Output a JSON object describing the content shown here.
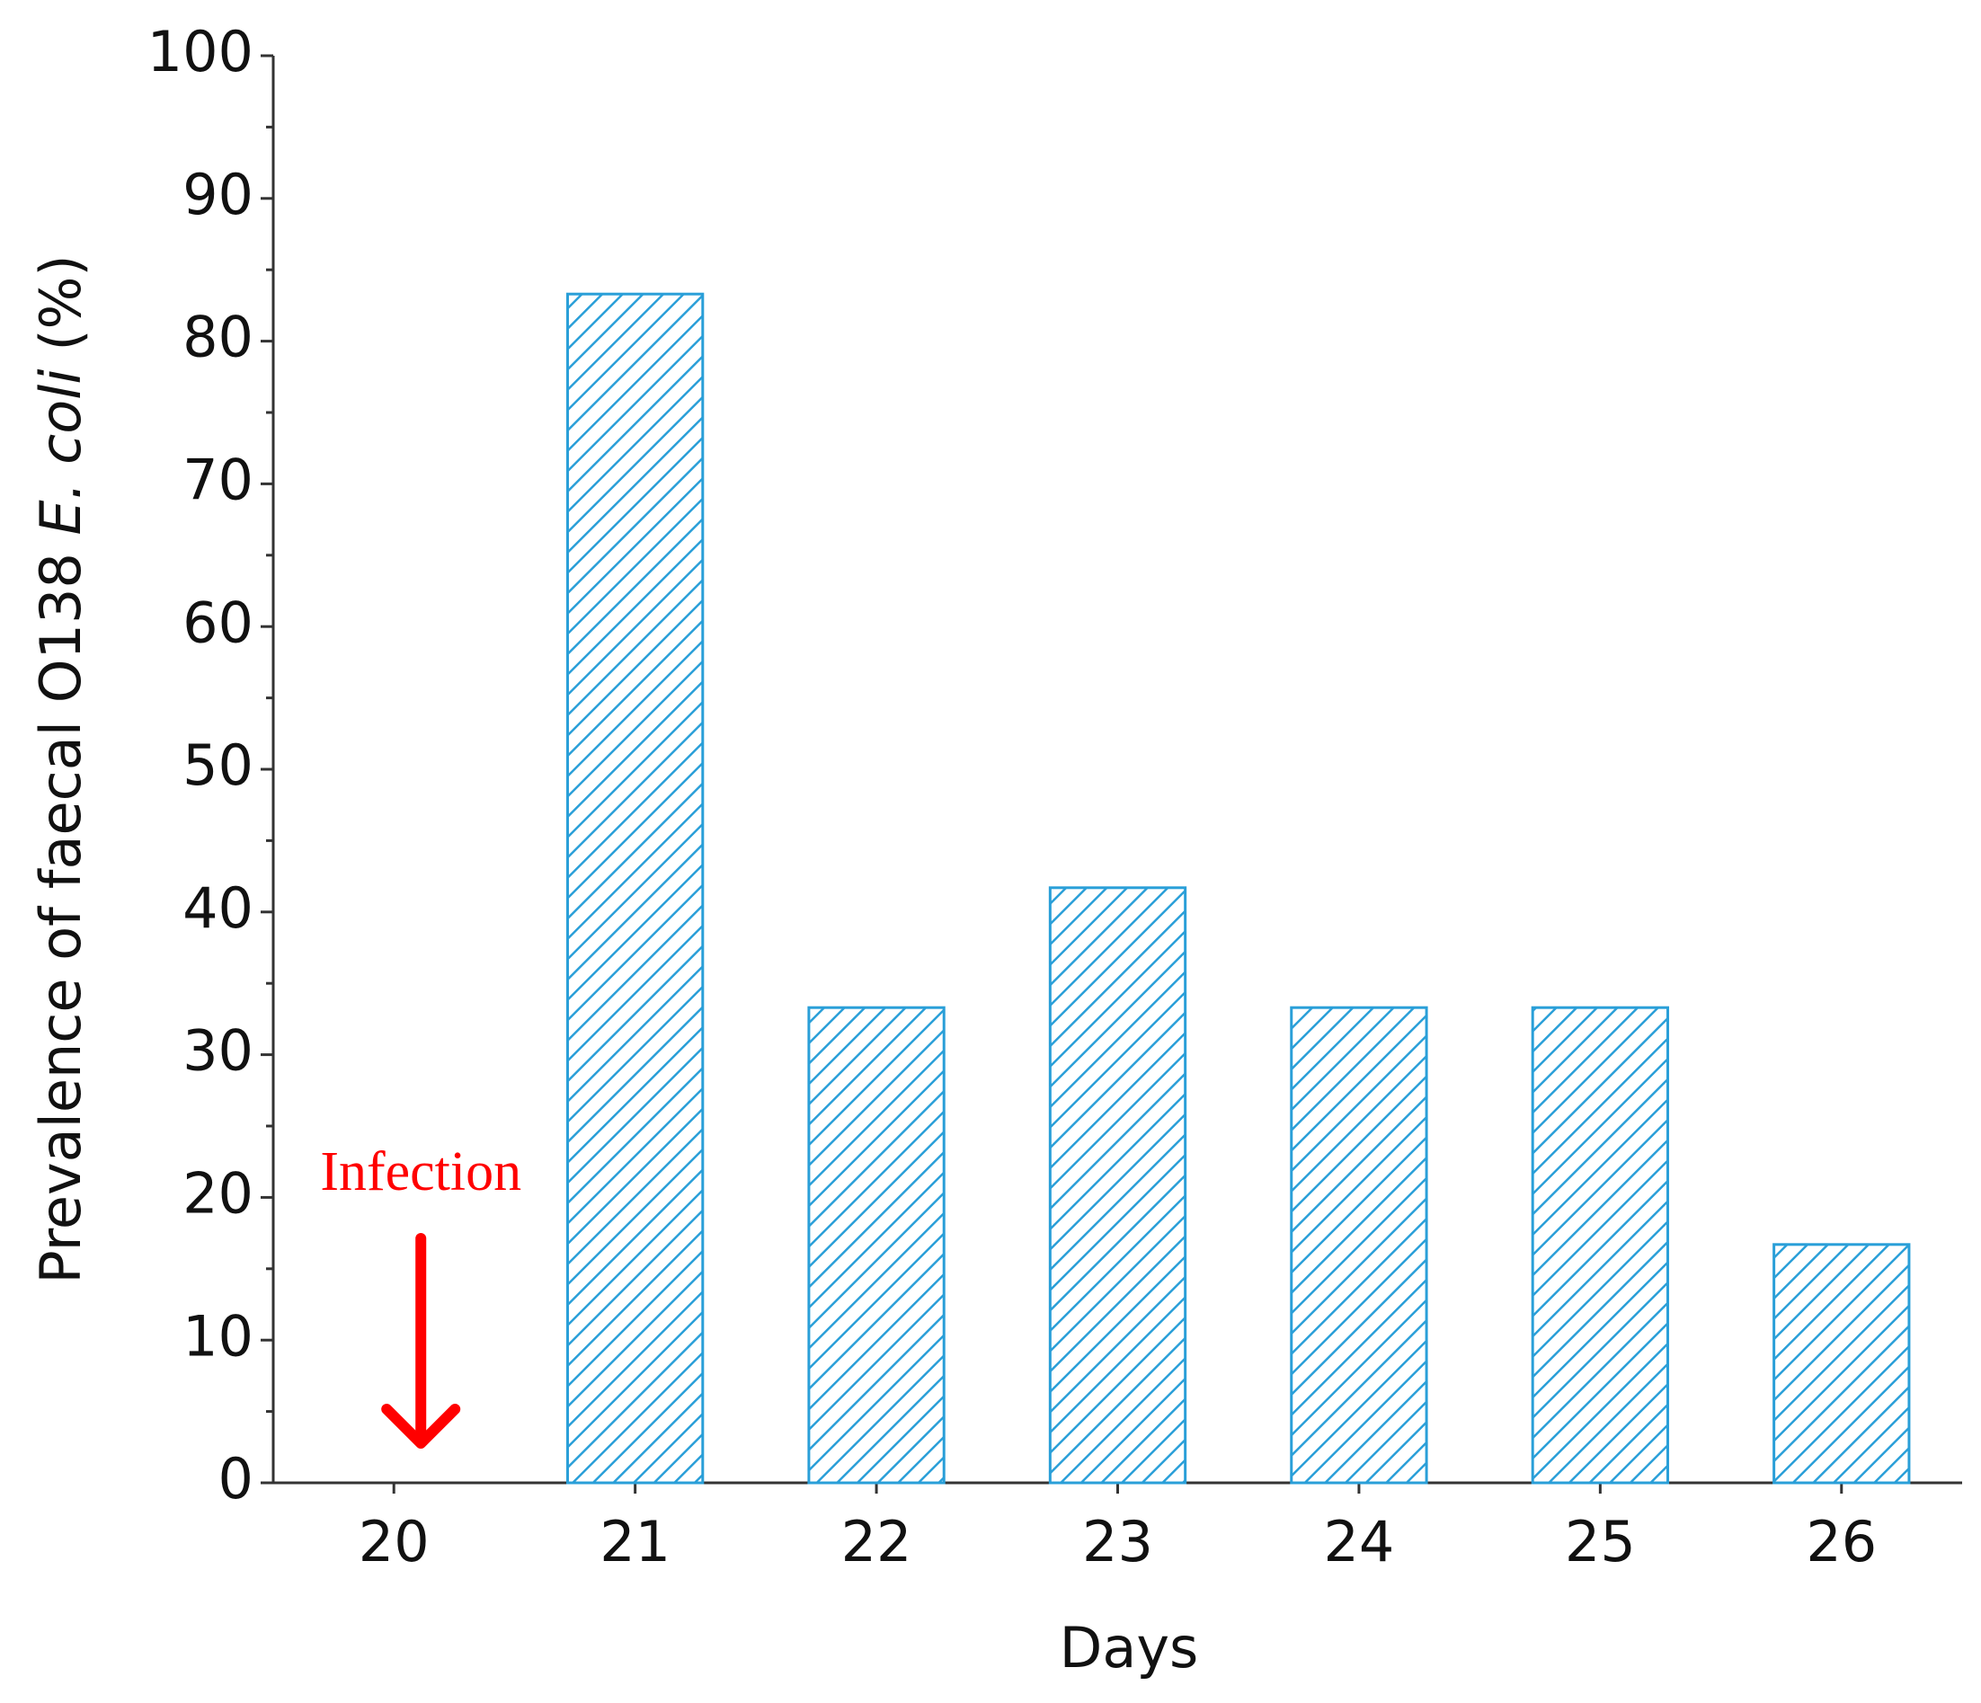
{
  "chart_data": {
    "type": "bar",
    "categories": [
      "20",
      "21",
      "22",
      "23",
      "24",
      "25",
      "26"
    ],
    "values": [
      0,
      83.3,
      33.3,
      41.7,
      33.3,
      33.3,
      16.7
    ],
    "color": "#2a9fd8",
    "hatch": true,
    "x_label": "Days",
    "y_label": [
      "Prevalence of faecal O138 ",
      "E. coli",
      " (%)"
    ],
    "ylim": [
      0,
      100
    ],
    "yticks": [
      0,
      10,
      20,
      30,
      40,
      50,
      60,
      70,
      80,
      90,
      100
    ],
    "minor_yticks": [
      5,
      15,
      25,
      35,
      45,
      55,
      65,
      75,
      85,
      95
    ],
    "grid": false,
    "annotation": {
      "text": "Infection",
      "category_index": 0,
      "color": "#ff0000"
    }
  }
}
